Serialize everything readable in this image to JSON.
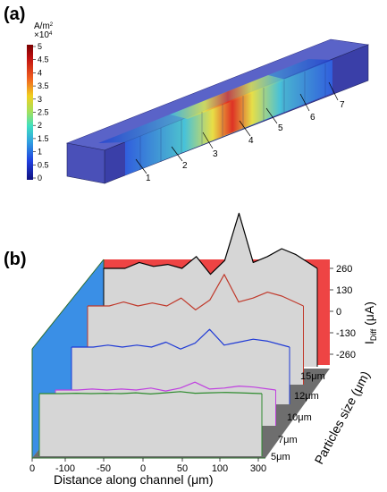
{
  "panel_a": {
    "label": "(a)",
    "colorbar": {
      "unit": "A/m",
      "unit_sup": "2",
      "scale": "×10",
      "scale_sup": "4",
      "ticks": [
        "5",
        "4.5",
        "4",
        "3.5",
        "3",
        "2.5",
        "2",
        "1.5",
        "1",
        "0.5",
        "0"
      ]
    },
    "electrode_numbers": [
      "1",
      "2",
      "3",
      "4",
      "5",
      "6",
      "7"
    ]
  },
  "panel_b": {
    "label": "(b)",
    "x_label": "Distance along channel (μm)",
    "x_ticks": [
      "0",
      "-100",
      "-50",
      "0",
      "50",
      "100",
      "300"
    ],
    "y_axis_label": "I",
    "y_axis_sub": "Diff",
    "y_axis_unit": " (μA)",
    "y_ticks": [
      "260",
      "130",
      "0",
      "-130",
      "-260"
    ],
    "depth_label": "Particles size (μm)",
    "depth_ticks": [
      "15μm",
      "12μm",
      "10μm",
      "7μm",
      "5μm"
    ]
  },
  "chart_data": {
    "type": "line",
    "x_label": "Distance along channel (μm)",
    "y_label": "I_Diff (μA)",
    "ylim": [
      -260,
      260
    ],
    "categories_depth": [
      "5μm",
      "7μm",
      "10μm",
      "12μm",
      "15μm"
    ],
    "series": [
      {
        "name": "15μm",
        "color": "#000000",
        "x": [
          -150,
          -120,
          -100,
          -80,
          -60,
          -40,
          -20,
          0,
          20,
          40,
          60,
          80,
          100,
          120,
          150
        ],
        "y": [
          0,
          0,
          30,
          10,
          20,
          0,
          60,
          -30,
          40,
          280,
          30,
          60,
          100,
          70,
          0
        ]
      },
      {
        "name": "12μm",
        "color": "#c0392b",
        "x": [
          -150,
          -120,
          -100,
          -80,
          -60,
          -40,
          -20,
          0,
          20,
          40,
          60,
          80,
          100,
          120,
          150
        ],
        "y": [
          0,
          0,
          20,
          0,
          15,
          0,
          40,
          -20,
          30,
          160,
          20,
          40,
          70,
          50,
          0
        ]
      },
      {
        "name": "10μm",
        "color": "#1f3ad6",
        "x": [
          -150,
          -120,
          -100,
          -80,
          -60,
          -40,
          -20,
          0,
          20,
          40,
          60,
          80,
          100,
          120,
          150
        ],
        "y": [
          0,
          0,
          10,
          0,
          10,
          0,
          25,
          -10,
          20,
          90,
          10,
          25,
          40,
          30,
          0
        ]
      },
      {
        "name": "7μm",
        "color": "#c040e0",
        "x": [
          -150,
          -120,
          -100,
          -80,
          -60,
          -40,
          -20,
          0,
          20,
          40,
          60,
          80,
          100,
          120,
          150
        ],
        "y": [
          0,
          0,
          5,
          0,
          5,
          0,
          10,
          -5,
          10,
          40,
          5,
          10,
          20,
          15,
          0
        ]
      },
      {
        "name": "5μm",
        "color": "#2e8b2e",
        "x": [
          -150,
          -120,
          -100,
          -80,
          -60,
          -40,
          -20,
          0,
          20,
          40,
          60,
          80,
          100,
          120,
          150
        ],
        "y": [
          0,
          0,
          2,
          0,
          2,
          0,
          4,
          -2,
          4,
          10,
          2,
          4,
          6,
          4,
          0
        ]
      }
    ]
  }
}
